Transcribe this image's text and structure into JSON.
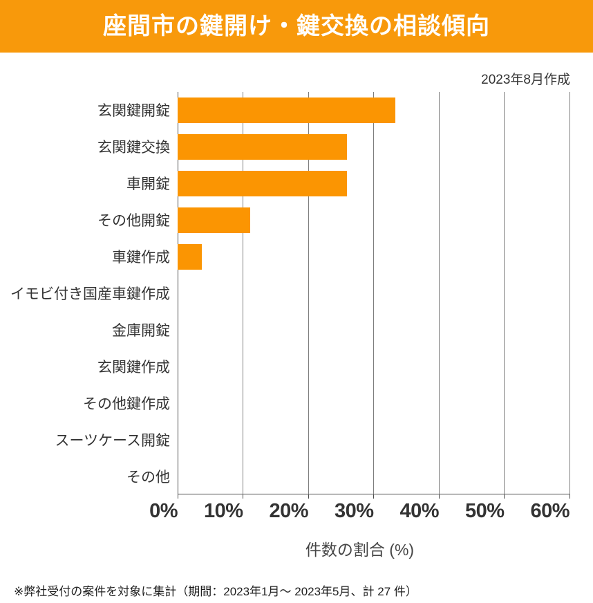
{
  "header": {
    "title": "座間市の鍵開け・鍵交換の相談傾向",
    "bg_color": "#F8990B",
    "text_color": "#FFFFFF"
  },
  "meta": {
    "created_note": "2023年8月作成"
  },
  "chart_data": {
    "type": "bar",
    "orientation": "horizontal",
    "title": "座間市の鍵開け・鍵交換の相談傾向",
    "categories": [
      "玄関鍵開錠",
      "玄関鍵交換",
      "車開錠",
      "その他開錠",
      "車鍵作成",
      "イモビ付き国産車鍵作成",
      "金庫開錠",
      "玄関鍵作成",
      "その他鍵作成",
      "スーツケース開錠",
      "その他"
    ],
    "values": [
      33.3,
      25.9,
      25.9,
      11.1,
      3.7,
      0,
      0,
      0,
      0,
      0,
      0
    ],
    "xlabel": "件数の割合 (%)",
    "ylabel": "",
    "xlim": [
      0,
      60
    ],
    "x_ticks": [
      0,
      10,
      20,
      30,
      40,
      50,
      60
    ],
    "x_tick_labels": [
      "0%",
      "10%",
      "20%",
      "30%",
      "40%",
      "50%",
      "60%"
    ],
    "grid": true,
    "legend": false,
    "bar_color": "#FB9502",
    "gridline_color": "#7d7d7d",
    "axis_color": "#4a4a4a"
  },
  "footer": {
    "note": "※弊社受付の案件を対象に集計（期間：2023年1月～ 2023年5月、計 27 件）"
  }
}
